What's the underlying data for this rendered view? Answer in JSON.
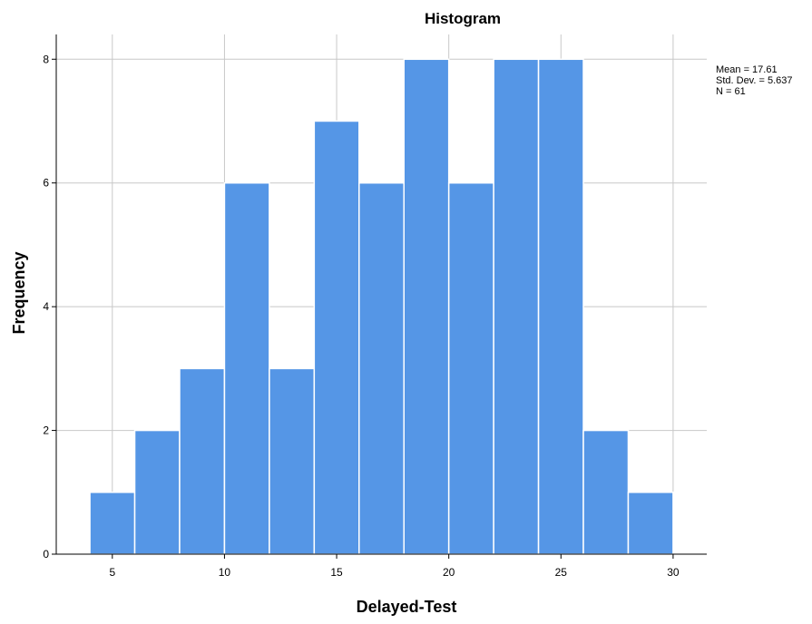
{
  "chart_data": {
    "type": "bar",
    "title": "Histogram",
    "xlabel": "Delayed-Test",
    "ylabel": "Frequency",
    "bin_width": 2,
    "bins": [
      {
        "start": 4,
        "end": 6,
        "count": 1
      },
      {
        "start": 6,
        "end": 8,
        "count": 2
      },
      {
        "start": 8,
        "end": 10,
        "count": 3
      },
      {
        "start": 10,
        "end": 12,
        "count": 6
      },
      {
        "start": 12,
        "end": 14,
        "count": 3
      },
      {
        "start": 14,
        "end": 16,
        "count": 7
      },
      {
        "start": 16,
        "end": 18,
        "count": 6
      },
      {
        "start": 18,
        "end": 20,
        "count": 8
      },
      {
        "start": 20,
        "end": 22,
        "count": 6
      },
      {
        "start": 22,
        "end": 24,
        "count": 8
      },
      {
        "start": 24,
        "end": 26,
        "count": 8
      },
      {
        "start": 26,
        "end": 28,
        "count": 2
      },
      {
        "start": 28,
        "end": 30,
        "count": 1
      }
    ],
    "xlim": [
      2.5,
      31.5
    ],
    "ylim": [
      0,
      8.4
    ],
    "x_ticks": [
      "5",
      "10",
      "15",
      "20",
      "25",
      "30"
    ],
    "y_ticks": [
      "0",
      "2",
      "4",
      "6",
      "8"
    ],
    "grid": true,
    "stats": {
      "mean": "Mean = 17.61",
      "std_dev": "Std. Dev. = 5.637",
      "n": "N = 61"
    },
    "legend_position": "top-right",
    "colors": {
      "bar_fill": "#5596E6",
      "bar_stroke": "#FFFFFF",
      "grid": "#C8C8C8",
      "axis": "#000000"
    }
  }
}
